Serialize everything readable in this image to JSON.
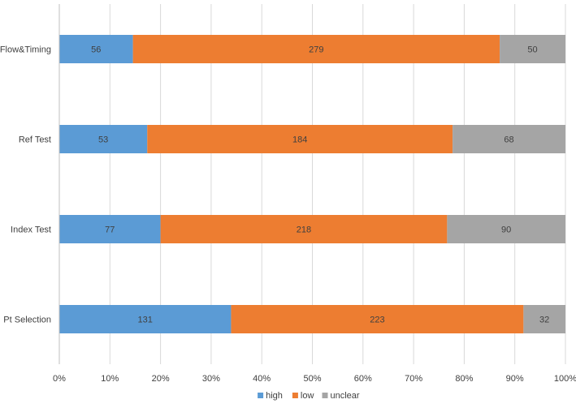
{
  "chart_data": {
    "type": "bar",
    "orientation": "horizontal",
    "stacking": "percent",
    "categories": [
      "Flow&Timing",
      "Ref Test",
      "Index Test",
      "Pt Selection"
    ],
    "series": [
      {
        "name": "high",
        "values": [
          56,
          53,
          77,
          131
        ],
        "color": "#5B9BD5"
      },
      {
        "name": "low",
        "values": [
          279,
          184,
          218,
          223
        ],
        "color": "#ED7D31"
      },
      {
        "name": "unclear",
        "values": [
          50,
          68,
          90,
          32
        ],
        "color": "#A5A5A5"
      }
    ],
    "x_ticks": [
      "0%",
      "10%",
      "20%",
      "30%",
      "40%",
      "50%",
      "60%",
      "70%",
      "80%",
      "90%",
      "100%"
    ],
    "xlim": [
      0,
      100
    ],
    "grid": true,
    "legend_position": "bottom",
    "title": "",
    "xlabel": "",
    "ylabel": ""
  }
}
